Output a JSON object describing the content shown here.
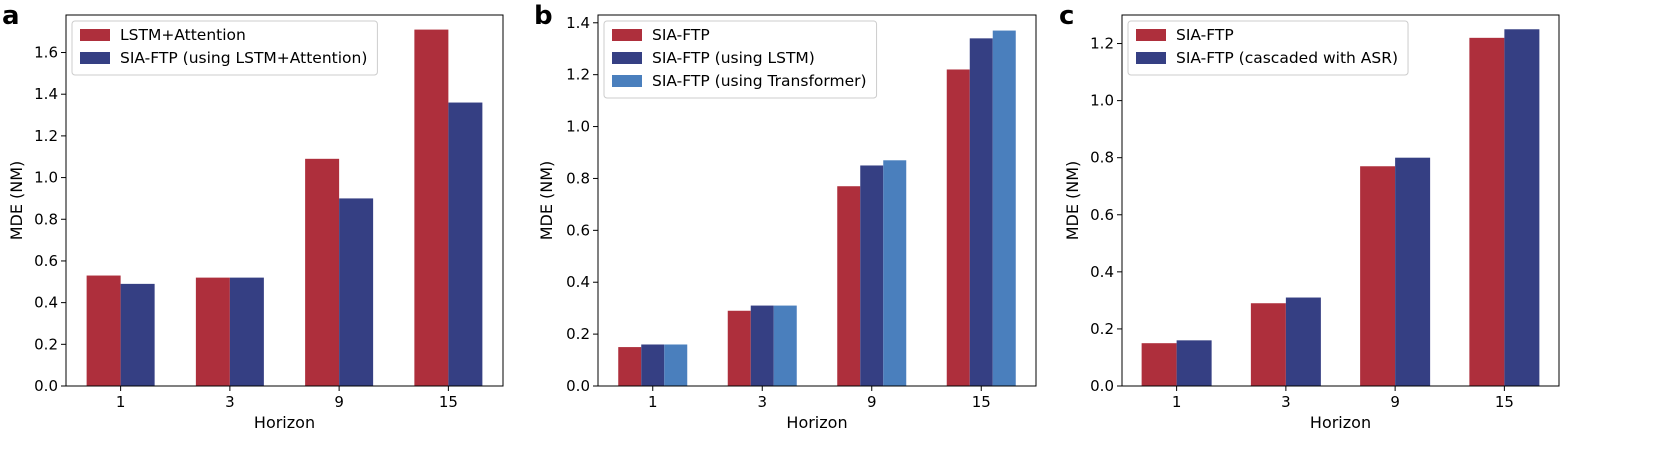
{
  "chart_data": [
    {
      "type": "bar",
      "panel_label": "a",
      "categories": [
        "1",
        "3",
        "9",
        "15"
      ],
      "series": [
        {
          "name": "LSTM+Attention",
          "color": "#ae2f3c",
          "values": [
            0.53,
            0.52,
            1.09,
            1.71
          ]
        },
        {
          "name": "SIA-FTP (using LSTM+Attention)",
          "color": "#353f83",
          "values": [
            0.49,
            0.52,
            0.9,
            1.36
          ]
        }
      ],
      "xlabel": "Horizon",
      "ylabel": "MDE (NM)",
      "ylim": [
        0,
        1.78
      ],
      "yticks": [
        "0.0",
        "0.2",
        "0.4",
        "0.6",
        "0.8",
        "1.0",
        "1.2",
        "1.4",
        "1.6"
      ],
      "legend_position": "top-left",
      "grid": false
    },
    {
      "type": "bar",
      "panel_label": "b",
      "categories": [
        "1",
        "3",
        "9",
        "15"
      ],
      "series": [
        {
          "name": "SIA-FTP",
          "color": "#ae2f3c",
          "values": [
            0.15,
            0.29,
            0.77,
            1.22
          ]
        },
        {
          "name": "SIA-FTP (using LSTM)",
          "color": "#353f83",
          "values": [
            0.16,
            0.31,
            0.85,
            1.34
          ]
        },
        {
          "name": "SIA-FTP (using Transformer)",
          "color": "#4a7fbd",
          "values": [
            0.16,
            0.31,
            0.87,
            1.37
          ]
        }
      ],
      "xlabel": "Horizon",
      "ylabel": "MDE (NM)",
      "ylim": [
        0,
        1.43
      ],
      "yticks": [
        "0.0",
        "0.2",
        "0.4",
        "0.6",
        "0.8",
        "1.0",
        "1.2",
        "1.4"
      ],
      "legend_position": "top-left",
      "grid": false
    },
    {
      "type": "bar",
      "panel_label": "c",
      "categories": [
        "1",
        "3",
        "9",
        "15"
      ],
      "series": [
        {
          "name": "SIA-FTP",
          "color": "#ae2f3c",
          "values": [
            0.15,
            0.29,
            0.77,
            1.22
          ]
        },
        {
          "name": "SIA-FTP (cascaded with ASR)",
          "color": "#353f83",
          "values": [
            0.16,
            0.31,
            0.8,
            1.25
          ]
        }
      ],
      "xlabel": "Horizon",
      "ylabel": "MDE (NM)",
      "ylim": [
        0,
        1.3
      ],
      "yticks": [
        "0.0",
        "0.2",
        "0.4",
        "0.6",
        "0.8",
        "1.0",
        "1.2"
      ],
      "legend_position": "top-left",
      "grid": false
    }
  ]
}
